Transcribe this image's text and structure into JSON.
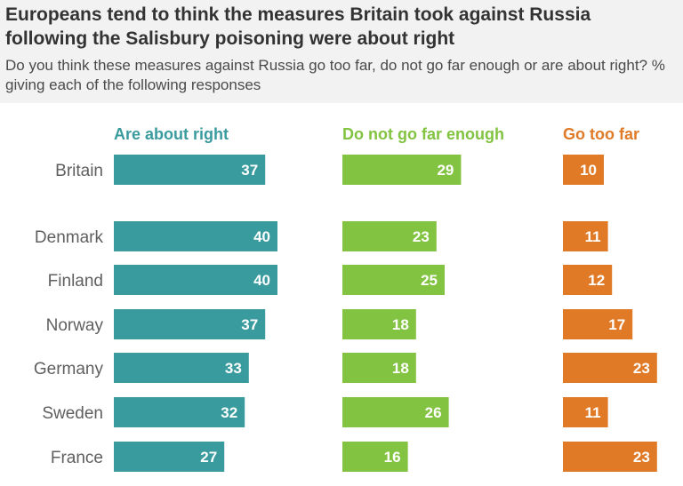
{
  "title": "Europeans tend to think the measures Britain took against Russia following the Salisbury poisoning were about right",
  "subtitle": "Do you think these measures against Russia go too far, do not go far enough or are about right? % giving each of the following responses",
  "colors": {
    "about_right": "#3a9b9e",
    "not_far_enough": "#82c341",
    "too_far": "#e07a27",
    "country_label": "#5f5f5f",
    "bar_label": "#ffffff"
  },
  "chart_data": {
    "type": "bar",
    "orientation": "horizontal",
    "layout": "small-multiples",
    "categories": [
      "Britain",
      "Denmark",
      "Finland",
      "Norway",
      "Germany",
      "Sweden",
      "France"
    ],
    "series": [
      {
        "name": "Are about right",
        "values": [
          37,
          40,
          40,
          37,
          33,
          32,
          27
        ]
      },
      {
        "name": "Do not go far enough",
        "values": [
          29,
          23,
          25,
          18,
          18,
          26,
          16
        ]
      },
      {
        "name": "Go too far",
        "values": [
          10,
          11,
          12,
          17,
          23,
          11,
          23
        ]
      }
    ],
    "xlabel": "",
    "ylabel": "",
    "grid": false,
    "data_labels": true
  }
}
